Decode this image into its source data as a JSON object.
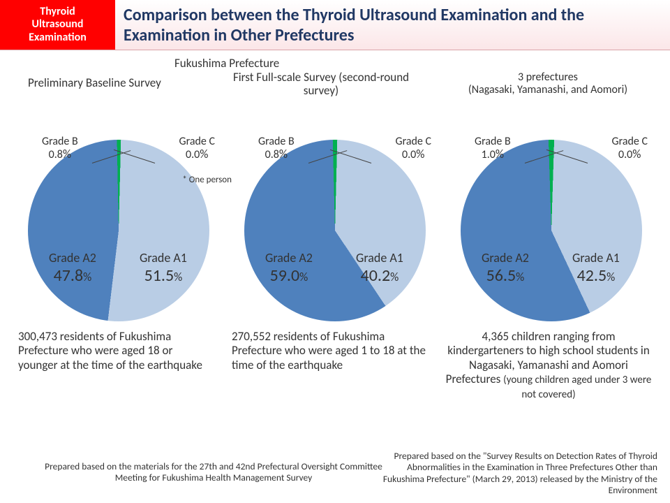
{
  "badge": {
    "line1": "Thyroid",
    "line2": "Ultrasound",
    "line3": "Examination"
  },
  "title": "Comparison between the Thyroid Ultrasound Examination and the Examination in Other Prefectures",
  "region_label": "Fukushima Prefecture",
  "sub1": "Preliminary Baseline Survey",
  "sub2": "First Full-scale Survey (second-round survey)",
  "sub3_line1": "3 prefectures",
  "sub3_line2": "(Nagasaki, Yamanashi, and Aomori)",
  "colors": {
    "a1": "#b9cde5",
    "a2": "#4f81bd",
    "b": "#00b050",
    "c": "#ff0000",
    "text": "#333333"
  },
  "charts": [
    {
      "id": "c1",
      "a1_label": "Grade A1",
      "a1_pct": "51.5",
      "a2_label": "Grade A2",
      "a2_pct": "47.8",
      "b_label": "Grade B",
      "b_pct_txt": "0.8",
      "b_pct": 0.8,
      "c_label": "Grade C",
      "c_pct_txt": "0.0",
      "c_pct": 0.0,
      "note": "* One person",
      "a1_val": 51.5,
      "a2_val": 47.8
    },
    {
      "id": "c2",
      "a1_label": "Grade A1",
      "a1_pct": "40.2",
      "a2_label": "Grade A2",
      "a2_pct": "59.0",
      "b_label": "Grade B",
      "b_pct_txt": "0.8",
      "b_pct": 0.8,
      "c_label": "Grade C",
      "c_pct_txt": "0.0",
      "c_pct": 0.0,
      "a1_val": 40.2,
      "a2_val": 59.0
    },
    {
      "id": "c3",
      "a1_label": "Grade A1",
      "a1_pct": "42.5",
      "a2_label": "Grade A2",
      "a2_pct": "56.5",
      "b_label": "Grade B",
      "b_pct_txt": "1.0",
      "b_pct": 1.0,
      "c_label": "Grade C",
      "c_pct_txt": "0.0",
      "c_pct": 0.0,
      "a1_val": 42.5,
      "a2_val": 56.5
    }
  ],
  "desc1": "300,473 residents of Fukushima Prefecture who were aged 18 or younger at the time of the earthquake",
  "desc2": "270,552 residents of Fukushima Prefecture who were aged 1 to 18 at the time of the earthquake",
  "desc3_main": "4,365 children ranging from kindergarteners to high school students in Nagasaki, Yamanashi and Aomori Prefectures ",
  "desc3_sm": "(young children aged under 3 were not covered)",
  "foot_left": "Prepared based on the materials for the 27th and 42nd Prefectural Oversight Committee Meeting for Fukushima Health Management Survey",
  "foot_right": "Prepared based on the \"Survey Results on Detection Rates of Thyroid Abnormalities in the Examination in Three Prefectures Other than Fukushima Prefecture\" (March 29, 2013)  released by the Ministry of the Environment",
  "pct_sign": "%"
}
